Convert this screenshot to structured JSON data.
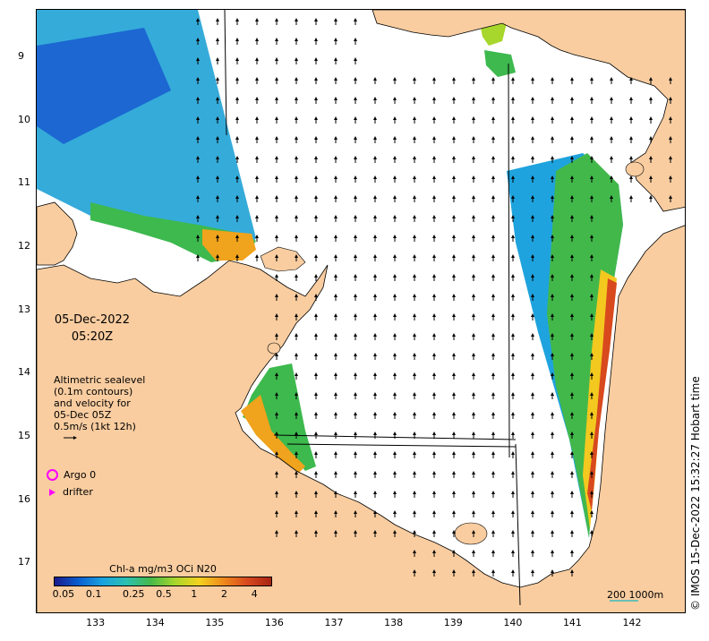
{
  "map": {
    "lat_ticks": [
      "9",
      "10",
      "11",
      "12",
      "13",
      "14",
      "15",
      "16",
      "17"
    ],
    "lon_ticks": [
      "133",
      "134",
      "135",
      "136",
      "137",
      "138",
      "139",
      "140",
      "141",
      "142"
    ],
    "lat_range": [
      -17.8,
      -8.25
    ],
    "lon_range": [
      132.0,
      142.9
    ],
    "colors": {
      "land": "#f9cda0",
      "sea": "#ffffff",
      "coast": "#000000",
      "arrow": "#000000"
    }
  },
  "date_label": {
    "date": "05-Dec-2022",
    "time": "05:20Z"
  },
  "altimetry_note": {
    "line1": "Altimetric sealevel",
    "line2": "(0.1m contours)",
    "line3": "and velocity for",
    "line4": "05-Dec 05Z",
    "line5": "0.5m/s (1kt 12h)"
  },
  "legend": {
    "argo_label": "Argo 0",
    "drifter_label": "drifter",
    "marker_color": "#ff00ff"
  },
  "colorbar": {
    "title": "Chl-a mg/m3 OCi N20",
    "ticks": [
      "0.05",
      "0.1",
      "0.25",
      "0.5",
      "1",
      "2",
      "4"
    ],
    "stops": [
      "#1a1a8c",
      "#0a5fd0",
      "#1aa3e0",
      "#2bc0b0",
      "#46b949",
      "#a7d62c",
      "#f4d21f",
      "#f08a1c",
      "#d8491e",
      "#a82412"
    ]
  },
  "scale_bar": {
    "label": "200  1000m"
  },
  "timestamp": "© IMOS 15-Dec-2022 15:32:27 Hobart time"
}
